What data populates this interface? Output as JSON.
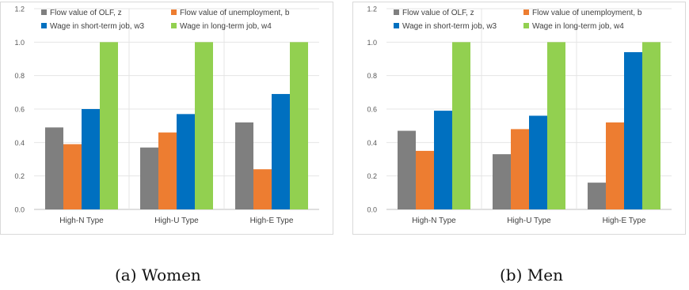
{
  "chart_data": [
    {
      "type": "bar",
      "categories": [
        "High-N Type",
        "High-U Type",
        "High-E Type"
      ],
      "series": [
        {
          "name": "Flow value of OLF, z",
          "color": "#7f7f7f",
          "values": [
            0.49,
            0.37,
            0.52
          ]
        },
        {
          "name": "Flow value of unemployment, b",
          "color": "#ed7d31",
          "values": [
            0.39,
            0.46,
            0.24
          ]
        },
        {
          "name": "Wage in short-term job, w3",
          "color": "#0070c0",
          "values": [
            0.6,
            0.57,
            0.69
          ]
        },
        {
          "name": "Wage in long-term job, w4",
          "color": "#92d050",
          "values": [
            1.0,
            1.0,
            1.0
          ]
        }
      ],
      "ylim": [
        0,
        1.2
      ],
      "yticks": [
        "0.0",
        "0.2",
        "0.4",
        "0.6",
        "0.8",
        "1.0",
        "1.2"
      ],
      "legend": "top-left",
      "caption": "(a)  Women"
    },
    {
      "type": "bar",
      "categories": [
        "High-N Type",
        "High-U Type",
        "High-E Type"
      ],
      "series": [
        {
          "name": "Flow value of OLF, z",
          "color": "#7f7f7f",
          "values": [
            0.47,
            0.33,
            0.16
          ]
        },
        {
          "name": "Flow value of unemployment, b",
          "color": "#ed7d31",
          "values": [
            0.35,
            0.48,
            0.52
          ]
        },
        {
          "name": "Wage in short-term job, w3",
          "color": "#0070c0",
          "values": [
            0.59,
            0.56,
            0.94
          ]
        },
        {
          "name": "Wage in long-term job, w4",
          "color": "#92d050",
          "values": [
            1.0,
            1.0,
            1.0
          ]
        }
      ],
      "ylim": [
        0,
        1.2
      ],
      "yticks": [
        "0.0",
        "0.2",
        "0.4",
        "0.6",
        "0.8",
        "1.0",
        "1.2"
      ],
      "legend": "top-left",
      "caption": "(b)  Men"
    }
  ]
}
